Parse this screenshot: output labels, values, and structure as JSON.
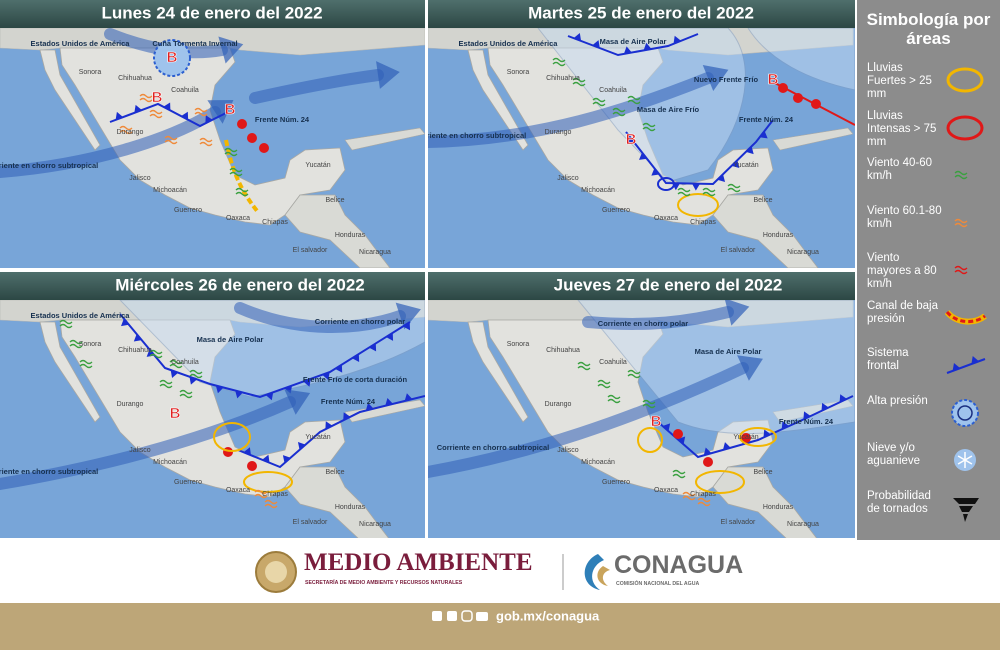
{
  "panels": [
    {
      "title": "Lunes 24 de enero del 2022",
      "annotations": [
        "Estados Unidos de América",
        "Cuña Tormenta Invernal",
        "Frente Núm. 24",
        "Corriente en chorro subtropical"
      ],
      "pressure": [
        "B",
        "B",
        "B"
      ],
      "places": [
        "Sonora",
        "Chihuahua",
        "Coahuila",
        "Durango",
        "Jalisco",
        "Michoacán",
        "Guerrero",
        "Oaxaca",
        "Chiapas",
        "Yucatán",
        "Belice",
        "Honduras",
        "El salvador",
        "Nicaragua"
      ]
    },
    {
      "title": "Martes 25 de enero del 2022",
      "annotations": [
        "Estados Unidos de América",
        "Masa de Aire Polar",
        "Nuevo Frente Frío",
        "Masa de Aire Frío",
        "Frente Núm. 24",
        "Corriente en chorro subtropical"
      ],
      "pressure": [
        "B",
        "B"
      ],
      "places": [
        "Sonora",
        "Chihuahua",
        "Coahuila",
        "Durango",
        "Jalisco",
        "Michoacán",
        "Guerrero",
        "Oaxaca",
        "Chiapas",
        "Yucatán",
        "Belice",
        "Honduras",
        "El salvador",
        "Nicaragua"
      ]
    },
    {
      "title": "Miércoles 26 de enero del 2022",
      "annotations": [
        "Estados Unidos de América",
        "Masa de Aire Polar",
        "Corriente en chorro polar",
        "Frente Frío de corta duración",
        "Frente Núm. 24",
        "Corriente en chorro subtropical"
      ],
      "pressure": [
        "B"
      ],
      "places": [
        "Sonora",
        "Chihuahua",
        "Coahuila",
        "Durango",
        "Jalisco",
        "Michoacán",
        "Guerrero",
        "Oaxaca",
        "Chiapas",
        "Yucatán",
        "Belice",
        "Honduras",
        "El salvador",
        "Nicaragua"
      ]
    },
    {
      "title": "Jueves 27 de enero del 2022",
      "annotations": [
        "Corriente en chorro polar",
        "Masa de Aire Polar",
        "Frente Núm. 24",
        "Corriente en chorro subtropical"
      ],
      "pressure": [
        "B"
      ],
      "places": [
        "Sonora",
        "Chihuahua",
        "Coahuila",
        "Durango",
        "Jalisco",
        "Michoacán",
        "Guerrero",
        "Oaxaca",
        "Chiapas",
        "Yucatán",
        "Belice",
        "Honduras",
        "El salvador",
        "Nicaragua"
      ]
    }
  ],
  "legend": {
    "title": "Simbología por áreas",
    "items": [
      "Lluvias Fuertes > 25 mm",
      "Lluvias Intensas > 75 mm",
      "Viento 40-60 km/h",
      "Viento 60.1-80 km/h",
      "Viento mayores a 80 km/h",
      "Canal de baja presión",
      "Sistema frontal",
      "Alta presión",
      "Nieve y/o aguanieve",
      "Probabilidad de tornados"
    ]
  },
  "footer": {
    "brand_left": "MEDIO AMBIENTE",
    "brand_left_sub": "SECRETARÍA DE MEDIO AMBIENTE Y RECURSOS NATURALES",
    "brand_right": "CONAGUA",
    "brand_right_sub": "COMISIÓN NACIONAL DEL AGUA",
    "url": "gob.mx/conagua"
  }
}
